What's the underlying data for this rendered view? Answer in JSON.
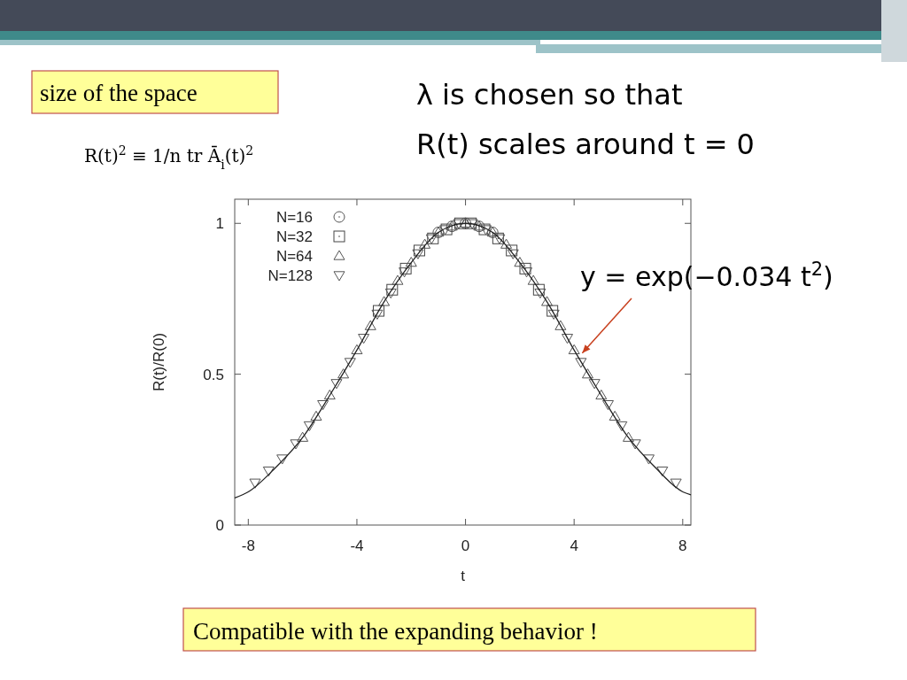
{
  "chart_data": {
    "type": "scatter",
    "xlabel": "t",
    "ylabel": "R(t)/R(0)",
    "xlim": [
      -8.5,
      8.3
    ],
    "ylim": [
      0,
      1.08
    ],
    "xticks": [
      -8,
      -4,
      0,
      4,
      8
    ],
    "yticks": [
      0,
      {
        "value": 0.5,
        "label": "0.5"
      },
      1
    ],
    "grid": false,
    "legend": "top left",
    "series": [
      {
        "name": "N=16",
        "color": "#555555",
        "marker": "circle",
        "x": [
          -1,
          -0.5,
          0,
          0.5,
          1
        ],
        "values": [
          0.97,
          0.99,
          1.0,
          0.99,
          0.97
        ]
      },
      {
        "name": "N=32",
        "color": "#444444",
        "marker": "square",
        "x": [
          -3.2,
          -2.7,
          -2.2,
          -1.7,
          -1.2,
          -0.7,
          -0.2,
          0.2,
          0.7,
          1.2,
          1.7,
          2.2,
          2.7,
          3.2
        ],
        "values": [
          0.71,
          0.78,
          0.85,
          0.91,
          0.95,
          0.98,
          1.0,
          1.0,
          0.98,
          0.95,
          0.91,
          0.85,
          0.78,
          0.71
        ]
      },
      {
        "name": "N=64",
        "color": "#555555",
        "marker": "triangle",
        "x": [
          -6,
          -5.5,
          -5,
          -4.5,
          -4,
          -3.5,
          -3,
          -2.5,
          -2,
          -1.5,
          -1,
          -0.5,
          0,
          0.5,
          1,
          1.5,
          2,
          2.5,
          3,
          3.5,
          4,
          4.5,
          5,
          5.5,
          6
        ],
        "values": [
          0.29,
          0.36,
          0.43,
          0.5,
          0.58,
          0.66,
          0.74,
          0.81,
          0.87,
          0.93,
          0.97,
          0.99,
          1.0,
          0.99,
          0.97,
          0.93,
          0.87,
          0.81,
          0.74,
          0.66,
          0.58,
          0.5,
          0.43,
          0.36,
          0.29
        ]
      },
      {
        "name": "N=128",
        "color": "#555555",
        "marker": "triangle_down",
        "x": [
          -7.75,
          -7.25,
          -6.75,
          -6.25,
          -5.75,
          -5.25,
          -4.75,
          -4.25,
          -3.75,
          -3.25,
          -2.75,
          -2.25,
          -1.75,
          -1.25,
          -0.75,
          -0.25,
          0.25,
          0.75,
          1.25,
          1.75,
          2.25,
          2.75,
          3.25,
          3.75,
          4.25,
          4.75,
          5.25,
          5.75,
          6.25,
          6.75,
          7.25,
          7.75
        ],
        "values": [
          0.14,
          0.18,
          0.22,
          0.27,
          0.33,
          0.4,
          0.47,
          0.54,
          0.62,
          0.7,
          0.77,
          0.84,
          0.9,
          0.95,
          0.98,
          1.0,
          1.0,
          0.98,
          0.95,
          0.9,
          0.84,
          0.77,
          0.7,
          0.62,
          0.54,
          0.47,
          0.4,
          0.33,
          0.27,
          0.22,
          0.18,
          0.14
        ]
      },
      {
        "type": "line",
        "color": "#222222",
        "marker": "none",
        "x": [
          -8.5,
          -8,
          -7,
          -6,
          -5,
          -4,
          -3,
          -2,
          -1,
          0,
          1,
          2,
          3,
          4,
          5,
          6,
          7,
          8,
          8.3
        ],
        "values": [
          0.09,
          0.11,
          0.19,
          0.29,
          0.43,
          0.58,
          0.74,
          0.87,
          0.97,
          1.0,
          0.97,
          0.87,
          0.74,
          0.58,
          0.43,
          0.29,
          0.19,
          0.11,
          0.1
        ]
      }
    ],
    "annotations": [
      "size of the space",
      "R(t)$^{2}$ ≡ 1/n tr Ā$_{i}$(t)$^{2}$",
      "λ is chosen so that",
      "R(t) scales around t = 0",
      {
        "text": "y = exp(−0.034 t$^{2}$)",
        "x": 4.3,
        "y": 0.57
      },
      "Compatible with the expanding behavior !"
    ]
  }
}
